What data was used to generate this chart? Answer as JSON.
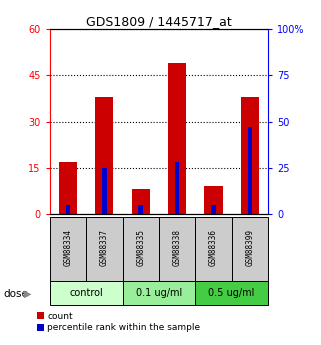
{
  "title": "GDS1809 / 1445717_at",
  "samples": [
    "GSM88334",
    "GSM88337",
    "GSM88335",
    "GSM88338",
    "GSM88336",
    "GSM88399"
  ],
  "count_values": [
    17,
    38,
    8,
    49,
    9,
    38
  ],
  "percentile_values": [
    5,
    25,
    5,
    28,
    5,
    47
  ],
  "ylim_left": [
    0,
    60
  ],
  "ylim_right": [
    0,
    100
  ],
  "yticks_left": [
    0,
    15,
    30,
    45,
    60
  ],
  "yticks_right": [
    0,
    25,
    50,
    75,
    100
  ],
  "count_color": "#cc0000",
  "percentile_color": "#0000cc",
  "dose_groups": [
    {
      "label": "control",
      "span": [
        0,
        1
      ],
      "color": "#ccffcc"
    },
    {
      "label": "0.1 ug/ml",
      "span": [
        2,
        3
      ],
      "color": "#99ee99"
    },
    {
      "label": "0.5 ug/ml",
      "span": [
        4,
        5
      ],
      "color": "#44cc44"
    }
  ],
  "legend_count": "count",
  "legend_percentile": "percentile rank within the sample",
  "sample_box_color": "#cccccc",
  "figure_bg": "#ffffff"
}
